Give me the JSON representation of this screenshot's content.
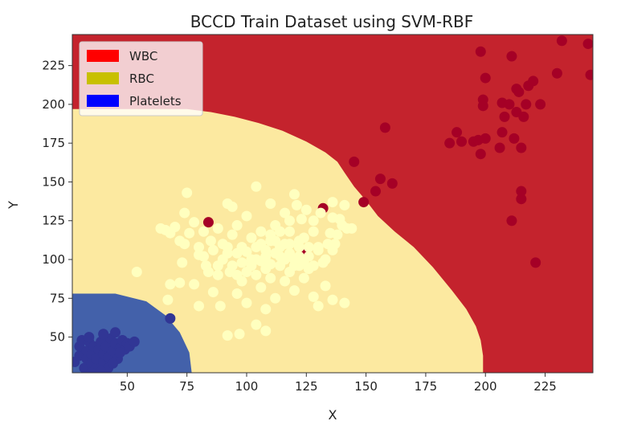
{
  "chart_data": {
    "type": "scatter",
    "title": "BCCD Train Dataset using SVM-RBF",
    "xlabel": "X",
    "ylabel": "Y",
    "xlim": [
      27,
      245
    ],
    "ylim": [
      27,
      245
    ],
    "xticks": [
      50,
      75,
      100,
      125,
      150,
      175,
      200,
      225
    ],
    "yticks": [
      50,
      75,
      100,
      125,
      150,
      175,
      200,
      225
    ],
    "xtick_labels": [
      "50",
      "75",
      "100",
      "125",
      "150",
      "175",
      "200",
      "225"
    ],
    "ytick_labels": [
      "50",
      "75",
      "100",
      "125",
      "150",
      "175",
      "200",
      "225"
    ],
    "grid": false,
    "legend_position": "top-left",
    "legend": [
      {
        "label": "WBC",
        "color": "#ff0000"
      },
      {
        "label": "RBC",
        "color": "#c8c000"
      },
      {
        "label": "Platelets",
        "color": "#0000ff"
      }
    ],
    "regions": {
      "colors": {
        "WBC": "#c4232d",
        "RBC": "#fce9a0",
        "Platelets": "#4361aa"
      },
      "boundary_rbc_wbc": [
        [
          27,
          197
        ],
        [
          50,
          197
        ],
        [
          75,
          197
        ],
        [
          85,
          195
        ],
        [
          95,
          192
        ],
        [
          105,
          188
        ],
        [
          115,
          183
        ],
        [
          125,
          176
        ],
        [
          133,
          169
        ],
        [
          138,
          163
        ],
        [
          141,
          156
        ],
        [
          145,
          147
        ],
        [
          150,
          138
        ],
        [
          155,
          128
        ],
        [
          162,
          118
        ],
        [
          170,
          108
        ],
        [
          178,
          95
        ],
        [
          186,
          80
        ],
        [
          192,
          68
        ],
        [
          196,
          57
        ],
        [
          198,
          48
        ],
        [
          199,
          38
        ],
        [
          199,
          27
        ]
      ],
      "boundary_platelets": [
        [
          27,
          78
        ],
        [
          45,
          78
        ],
        [
          58,
          73
        ],
        [
          66,
          64
        ],
        [
          72,
          53
        ],
        [
          76,
          40
        ],
        [
          77,
          27
        ]
      ]
    },
    "series": [
      {
        "name": "WBC",
        "color": "#a50026",
        "points": [
          [
            84,
            124
          ],
          [
            132,
            133
          ],
          [
            145,
            163
          ],
          [
            149,
            137
          ],
          [
            154,
            144
          ],
          [
            156,
            152
          ],
          [
            158,
            185
          ],
          [
            161,
            149
          ],
          [
            185,
            175
          ],
          [
            188,
            182
          ],
          [
            190,
            176
          ],
          [
            195,
            176
          ],
          [
            197,
            177
          ],
          [
            198,
            234
          ],
          [
            198,
            168
          ],
          [
            199,
            199
          ],
          [
            199,
            203
          ],
          [
            200,
            217
          ],
          [
            200,
            178
          ],
          [
            206,
            172
          ],
          [
            207,
            182
          ],
          [
            207,
            201
          ],
          [
            208,
            192
          ],
          [
            210,
            200
          ],
          [
            211,
            231
          ],
          [
            212,
            178
          ],
          [
            211,
            125
          ],
          [
            213,
            210
          ],
          [
            213,
            195
          ],
          [
            214,
            208
          ],
          [
            215,
            144
          ],
          [
            215,
            139
          ],
          [
            215,
            172
          ],
          [
            216,
            192
          ],
          [
            217,
            200
          ],
          [
            218,
            212
          ],
          [
            220,
            215
          ],
          [
            221,
            98
          ],
          [
            223,
            200
          ],
          [
            230,
            220
          ],
          [
            232,
            241
          ],
          [
            243,
            239
          ],
          [
            244,
            219
          ],
          [
            124,
            105
          ]
        ]
      },
      {
        "name": "RBC",
        "color": "#ffffbf",
        "points": [
          [
            66,
            119
          ],
          [
            68,
            117
          ],
          [
            70,
            121
          ],
          [
            72,
            112
          ],
          [
            74,
            110
          ],
          [
            76,
            117
          ],
          [
            78,
            124
          ],
          [
            80,
            108
          ],
          [
            82,
            102
          ],
          [
            85,
            112
          ],
          [
            88,
            120
          ],
          [
            90,
            110
          ],
          [
            92,
            104
          ],
          [
            94,
            116
          ],
          [
            96,
            122
          ],
          [
            98,
            108
          ],
          [
            100,
            128
          ],
          [
            102,
            114
          ],
          [
            104,
            100
          ],
          [
            106,
            118
          ],
          [
            108,
            106
          ],
          [
            110,
            112
          ],
          [
            112,
            122
          ],
          [
            114,
            102
          ],
          [
            116,
            110
          ],
          [
            118,
            118
          ],
          [
            120,
            96
          ],
          [
            122,
            108
          ],
          [
            124,
            114
          ],
          [
            126,
            102
          ],
          [
            128,
            118
          ],
          [
            130,
            108
          ],
          [
            132,
            98
          ],
          [
            134,
            110
          ],
          [
            136,
            106
          ],
          [
            138,
            116
          ],
          [
            140,
            122
          ],
          [
            136,
            127
          ],
          [
            141,
            135
          ],
          [
            136,
            137
          ],
          [
            128,
            125
          ],
          [
            74,
            130
          ],
          [
            75,
            143
          ],
          [
            92,
            136
          ],
          [
            94,
            134
          ],
          [
            104,
            147
          ],
          [
            110,
            136
          ],
          [
            121,
            135
          ],
          [
            123,
            126
          ],
          [
            120,
            142
          ],
          [
            116,
            130
          ],
          [
            118,
            125
          ],
          [
            125,
            132
          ],
          [
            131,
            130
          ],
          [
            139,
            126
          ],
          [
            142,
            120
          ],
          [
            135,
            117
          ],
          [
            137,
            110
          ],
          [
            133,
            100
          ],
          [
            130,
            106
          ],
          [
            73,
            98
          ],
          [
            68,
            84
          ],
          [
            78,
            84
          ],
          [
            80,
            70
          ],
          [
            86,
            79
          ],
          [
            89,
            70
          ],
          [
            93,
            92
          ],
          [
            96,
            78
          ],
          [
            98,
            86
          ],
          [
            100,
            72
          ],
          [
            104,
            90
          ],
          [
            106,
            82
          ],
          [
            108,
            94
          ],
          [
            110,
            88
          ],
          [
            112,
            75
          ],
          [
            114,
            96
          ],
          [
            116,
            86
          ],
          [
            118,
            92
          ],
          [
            120,
            80
          ],
          [
            122,
            96
          ],
          [
            124,
            88
          ],
          [
            126,
            94
          ],
          [
            128,
            76
          ],
          [
            130,
            70
          ],
          [
            133,
            83
          ],
          [
            80,
            103
          ],
          [
            83,
            96
          ],
          [
            86,
            106
          ],
          [
            88,
            96
          ],
          [
            90,
            100
          ],
          [
            92,
            108
          ],
          [
            94,
            96
          ],
          [
            96,
            104
          ],
          [
            98,
            98
          ],
          [
            100,
            105
          ],
          [
            102,
            96
          ],
          [
            104,
            108
          ],
          [
            106,
            99
          ],
          [
            108,
            102
          ],
          [
            110,
            97
          ],
          [
            112,
            104
          ],
          [
            114,
            108
          ],
          [
            116,
            100
          ],
          [
            118,
            104
          ],
          [
            120,
            100
          ],
          [
            122,
            102
          ],
          [
            124,
            98
          ],
          [
            126,
            108
          ],
          [
            128,
            96
          ],
          [
            100,
            92
          ],
          [
            102,
            100
          ],
          [
            106,
            110
          ],
          [
            110,
            116
          ],
          [
            112,
            112
          ],
          [
            114,
            118
          ],
          [
            118,
            110
          ],
          [
            122,
            112
          ],
          [
            96,
            90
          ],
          [
            88,
            90
          ],
          [
            84,
            92
          ],
          [
            82,
            118
          ],
          [
            67,
            74
          ],
          [
            54,
            92
          ],
          [
            64,
            120
          ],
          [
            72,
            85
          ],
          [
            92,
            51
          ],
          [
            97,
            52
          ],
          [
            104,
            58
          ],
          [
            108,
            68
          ],
          [
            108,
            54
          ],
          [
            136,
            74
          ],
          [
            141,
            72
          ],
          [
            144,
            120
          ]
        ]
      },
      {
        "name": "Platelets",
        "color": "#313695",
        "points": [
          [
            68,
            62
          ],
          [
            28,
            34
          ],
          [
            30,
            38
          ],
          [
            30,
            44
          ],
          [
            31,
            48
          ],
          [
            32,
            30
          ],
          [
            33,
            36
          ],
          [
            33,
            41
          ],
          [
            34,
            47
          ],
          [
            35,
            33
          ],
          [
            35,
            39
          ],
          [
            36,
            44
          ],
          [
            37,
            30
          ],
          [
            37,
            36
          ],
          [
            38,
            42
          ],
          [
            39,
            47
          ],
          [
            40,
            34
          ],
          [
            40,
            39
          ],
          [
            41,
            44
          ],
          [
            42,
            30
          ],
          [
            42,
            37
          ],
          [
            43,
            49
          ],
          [
            44,
            41
          ],
          [
            45,
            46
          ],
          [
            45,
            53
          ],
          [
            46,
            36
          ],
          [
            47,
            43
          ],
          [
            48,
            48
          ],
          [
            49,
            42
          ],
          [
            50,
            46
          ],
          [
            51,
            44
          ],
          [
            53,
            47
          ],
          [
            35,
            27
          ],
          [
            39,
            28
          ],
          [
            47,
            40
          ],
          [
            40,
            52
          ],
          [
            34,
            50
          ],
          [
            44,
            33
          ]
        ]
      }
    ]
  }
}
